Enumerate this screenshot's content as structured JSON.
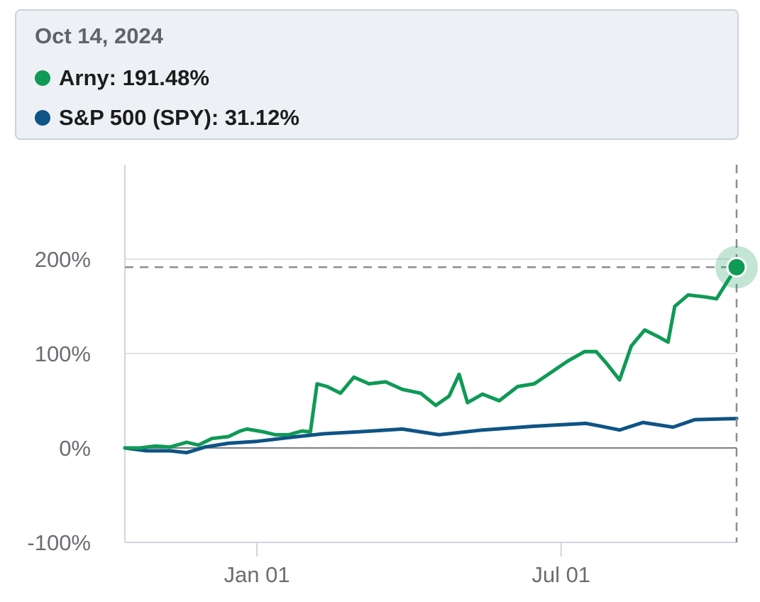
{
  "tooltip": {
    "date": "Oct 14, 2024",
    "rows": [
      {
        "name": "Arny",
        "value": "191.48%",
        "color": "#0f9a55"
      },
      {
        "name": "S&P 500 (SPY)",
        "value": "31.12%",
        "color": "#0e5485"
      }
    ]
  },
  "chart_data": {
    "type": "line",
    "x_axis": {
      "type": "date",
      "ticks": [
        "Jan 01",
        "Jul 01"
      ],
      "tick_dates": [
        "2024-01-01",
        "2024-07-01"
      ],
      "range": [
        "2023-10-14",
        "2024-10-14"
      ]
    },
    "y_axis": {
      "ticks": [
        "200%",
        "100%",
        "0%",
        "-100%"
      ],
      "tick_values": [
        200,
        100,
        0,
        -100
      ],
      "range": [
        -100,
        300
      ],
      "unit": "%"
    },
    "grid": true,
    "crosshair": {
      "x": "2024-10-14",
      "y": 191.48
    },
    "series": [
      {
        "name": "Arny",
        "color": "#0f9a55",
        "points": [
          [
            "2023-10-14",
            0
          ],
          [
            "2023-10-23",
            0
          ],
          [
            "2023-11-01",
            2
          ],
          [
            "2023-11-10",
            1
          ],
          [
            "2023-11-20",
            6
          ],
          [
            "2023-11-27",
            3
          ],
          [
            "2023-12-05",
            10
          ],
          [
            "2023-12-15",
            12
          ],
          [
            "2023-12-22",
            18
          ],
          [
            "2023-12-26",
            20
          ],
          [
            "2024-01-05",
            17
          ],
          [
            "2024-01-12",
            14
          ],
          [
            "2024-01-20",
            14
          ],
          [
            "2024-01-28",
            18
          ],
          [
            "2024-02-02",
            17
          ],
          [
            "2024-02-06",
            68
          ],
          [
            "2024-02-12",
            65
          ],
          [
            "2024-02-20",
            58
          ],
          [
            "2024-02-28",
            75
          ],
          [
            "2024-03-08",
            68
          ],
          [
            "2024-03-18",
            70
          ],
          [
            "2024-03-28",
            62
          ],
          [
            "2024-04-08",
            58
          ],
          [
            "2024-04-17",
            45
          ],
          [
            "2024-04-25",
            55
          ],
          [
            "2024-05-01",
            78
          ],
          [
            "2024-05-06",
            48
          ],
          [
            "2024-05-15",
            57
          ],
          [
            "2024-05-25",
            50
          ],
          [
            "2024-06-05",
            65
          ],
          [
            "2024-06-15",
            68
          ],
          [
            "2024-06-25",
            80
          ],
          [
            "2024-07-05",
            92
          ],
          [
            "2024-07-15",
            102
          ],
          [
            "2024-07-22",
            102
          ],
          [
            "2024-07-28",
            90
          ],
          [
            "2024-08-05",
            72
          ],
          [
            "2024-08-12",
            108
          ],
          [
            "2024-08-20",
            125
          ],
          [
            "2024-08-28",
            118
          ],
          [
            "2024-09-03",
            112
          ],
          [
            "2024-09-07",
            150
          ],
          [
            "2024-09-15",
            162
          ],
          [
            "2024-09-25",
            160
          ],
          [
            "2024-10-02",
            158
          ],
          [
            "2024-10-08",
            175
          ],
          [
            "2024-10-14",
            191.48
          ]
        ]
      },
      {
        "name": "S&P 500 (SPY)",
        "color": "#0e5485",
        "points": [
          [
            "2023-10-14",
            0
          ],
          [
            "2023-10-27",
            -3
          ],
          [
            "2023-11-10",
            -3
          ],
          [
            "2023-11-20",
            -5
          ],
          [
            "2023-12-01",
            1
          ],
          [
            "2023-12-15",
            5
          ],
          [
            "2024-01-01",
            7
          ],
          [
            "2024-01-20",
            11
          ],
          [
            "2024-02-10",
            15
          ],
          [
            "2024-03-01",
            17
          ],
          [
            "2024-03-28",
            20
          ],
          [
            "2024-04-19",
            14
          ],
          [
            "2024-05-15",
            19
          ],
          [
            "2024-06-15",
            23
          ],
          [
            "2024-07-16",
            26
          ],
          [
            "2024-07-25",
            23
          ],
          [
            "2024-08-05",
            19
          ],
          [
            "2024-08-19",
            27
          ],
          [
            "2024-09-06",
            22
          ],
          [
            "2024-09-19",
            30
          ],
          [
            "2024-10-14",
            31.12
          ]
        ]
      }
    ]
  }
}
